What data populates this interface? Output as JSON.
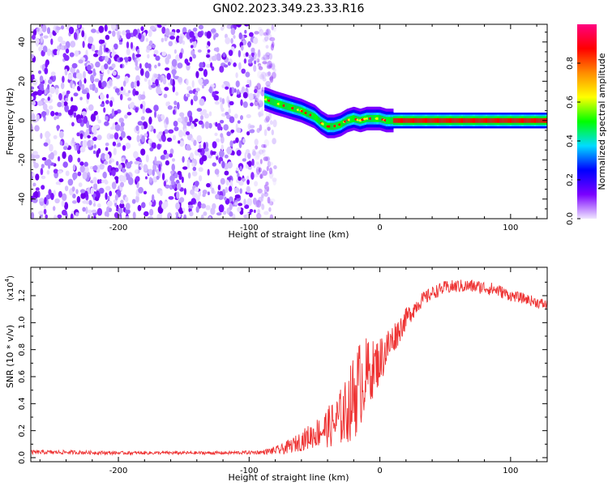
{
  "title": "GN02.2023.349.23.33.R16",
  "chart_data": [
    {
      "type": "heatmap",
      "xlabel": "Height of straight line (km)",
      "ylabel": "Frequency (Hz)",
      "xlim": [
        -267,
        128
      ],
      "ylim": [
        -50,
        49
      ],
      "xticks": [
        -200,
        -100,
        0,
        100
      ],
      "yticks": [
        -40,
        -20,
        0,
        20,
        40
      ],
      "colorbar": {
        "label": "Normalized spectral amplitude",
        "range": [
          0,
          1
        ],
        "ticks": [
          "0.0",
          "0.2",
          "0.4",
          "0.6",
          "0.8"
        ],
        "ticks_values": [
          0,
          0.2,
          0.4,
          0.6,
          0.8
        ],
        "colormap": [
          "#f0e6ff",
          "#7a00ff",
          "#0000ff",
          "#00dcff",
          "#00ff00",
          "#ffff00",
          "#ff8c00",
          "#ff0000",
          "#ff0080"
        ]
      },
      "noise_region_x": [
        -267,
        -80
      ],
      "signal_track": {
        "x": [
          -88,
          -80,
          -70,
          -60,
          -50,
          -45,
          -40,
          -35,
          -30,
          -25,
          -20,
          -15,
          -10,
          -5,
          0,
          5,
          10,
          30,
          60,
          90,
          128
        ],
        "frequency": [
          11,
          9,
          7,
          5,
          2,
          -1,
          -3,
          -3,
          -2,
          0,
          1,
          0,
          1,
          1,
          1,
          0,
          0,
          0,
          0,
          0,
          0
        ]
      }
    },
    {
      "type": "line",
      "ylabel": "SNR (10 * v/v)",
      "xlabel": "Height of straight line (km)",
      "y_multiplier": "(x10",
      "y_multiplier_exp": "4",
      "xlim": [
        -267,
        128
      ],
      "ylim": [
        -0.03,
        1.41
      ],
      "xticks": [
        -200,
        -100,
        0,
        100
      ],
      "yticks": [
        "0.0",
        "0.2",
        "0.4",
        "0.6",
        "0.8",
        "1.0",
        "1.2"
      ],
      "yticks_values": [
        0,
        0.2,
        0.4,
        0.6,
        0.8,
        1.0,
        1.2
      ],
      "series": [
        {
          "color": "#ee3333",
          "x": [
            -267,
            -240,
            -200,
            -160,
            -120,
            -90,
            -75,
            -65,
            -55,
            -45,
            -35,
            -25,
            -18,
            -12,
            -6,
            0,
            5,
            10,
            15,
            20,
            30,
            40,
            50,
            60,
            70,
            80,
            90,
            100,
            110,
            120,
            128
          ],
          "y": [
            0.04,
            0.04,
            0.035,
            0.035,
            0.035,
            0.04,
            0.06,
            0.1,
            0.15,
            0.2,
            0.25,
            0.35,
            0.5,
            0.6,
            0.65,
            0.72,
            0.8,
            0.88,
            0.95,
            1.03,
            1.15,
            1.22,
            1.26,
            1.27,
            1.27,
            1.26,
            1.24,
            1.2,
            1.18,
            1.15,
            1.13
          ],
          "noise_amplitude": [
            0.015,
            0.015,
            0.012,
            0.012,
            0.012,
            0.015,
            0.04,
            0.06,
            0.09,
            0.12,
            0.18,
            0.25,
            0.35,
            0.3,
            0.22,
            0.18,
            0.16,
            0.12,
            0.1,
            0.08,
            0.06,
            0.05,
            0.05,
            0.05,
            0.05,
            0.05,
            0.05,
            0.04,
            0.04,
            0.04,
            0.04
          ]
        }
      ]
    }
  ]
}
